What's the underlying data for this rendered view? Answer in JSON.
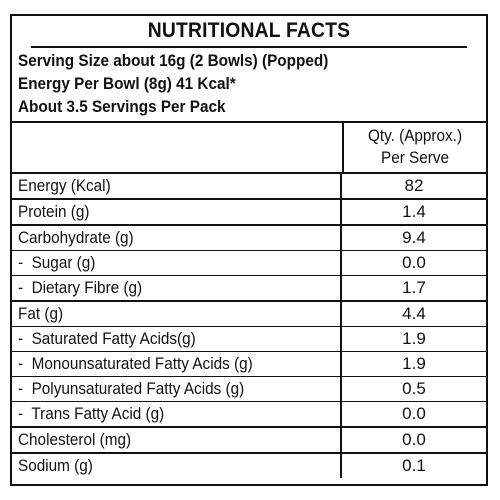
{
  "title": "NUTRITIONAL FACTS",
  "info": [
    "Serving Size about 16g (2 Bowls) (Popped)",
    "Energy Per Bowl (8g) 41 Kcal*",
    "About 3.5 Servings Per Pack"
  ],
  "header": {
    "qty_line1": "Qty. (Approx.)",
    "qty_line2": "Per Serve"
  },
  "groups": [
    [
      {
        "label": "Energy (Kcal)",
        "value": "82"
      }
    ],
    [
      {
        "label": "Protein (g)",
        "value": "1.4"
      }
    ],
    [
      {
        "label": "Carbohydrate (g)",
        "value": "9.4"
      },
      {
        "label": "-  Sugar (g)",
        "value": "0.0"
      },
      {
        "label": "-  Dietary Fibre (g)",
        "value": "1.7"
      }
    ],
    [
      {
        "label": "Fat (g)",
        "value": "4.4"
      },
      {
        "label": "-  Saturated Fatty Acids(g)",
        "value": "1.9"
      },
      {
        "label": "-  Monounsaturated Fatty Acids (g)",
        "value": "1.9"
      },
      {
        "label": "-  Polyunsaturated Fatty Acids (g)",
        "value": "0.5"
      },
      {
        "label": "-  Trans Fatty Acid (g)",
        "value": "0.0"
      }
    ],
    [
      {
        "label": "Cholesterol (mg)",
        "value": "0.0"
      }
    ],
    [
      {
        "label": "Sodium (g)",
        "value": "0.1"
      }
    ]
  ]
}
